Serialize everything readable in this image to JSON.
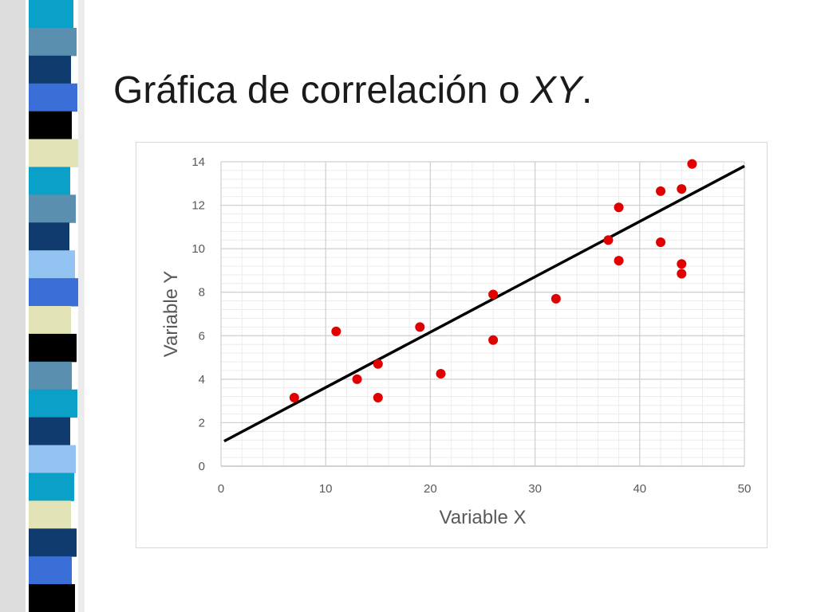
{
  "slide": {
    "title_main": "Gráfica de correlación o ",
    "title_italic": "XY",
    "title_end": ".",
    "strip_colors": [
      "#0aa0c8",
      "#5a8fb0",
      "#0f3b6e",
      "#3a6fd8",
      "#000000",
      "#e3e3b8",
      "#0aa0c8",
      "#5a8fb0",
      "#0f3b6e",
      "#93c3f0",
      "#3a6fd8",
      "#e3e3b8",
      "#000000",
      "#5a8fb0",
      "#0aa0c8",
      "#0f3b6e",
      "#93c3f0",
      "#0aa0c8",
      "#e3e3b8",
      "#0f3b6e",
      "#3a6fd8",
      "#000000"
    ]
  },
  "chart_data": {
    "type": "scatter",
    "title": "",
    "xlabel": "Variable X",
    "ylabel": "Variable Y",
    "xlim": [
      0,
      50
    ],
    "ylim": [
      0,
      14
    ],
    "xticks": [
      "0",
      "10",
      "20",
      "30",
      "40",
      "50"
    ],
    "yticks": [
      "0",
      "2",
      "4",
      "6",
      "8",
      "10",
      "12",
      "14"
    ],
    "grid": true,
    "minor_grid": true,
    "legend": "none",
    "point_color": "#e00000",
    "trendline_color": "#000000",
    "points": [
      {
        "x": 7,
        "y": 3.15
      },
      {
        "x": 11,
        "y": 6.2
      },
      {
        "x": 13,
        "y": 4.0
      },
      {
        "x": 15,
        "y": 4.7
      },
      {
        "x": 15,
        "y": 3.15
      },
      {
        "x": 19,
        "y": 6.4
      },
      {
        "x": 21,
        "y": 4.25
      },
      {
        "x": 26,
        "y": 7.9
      },
      {
        "x": 26,
        "y": 5.8
      },
      {
        "x": 32,
        "y": 7.7
      },
      {
        "x": 37,
        "y": 10.4
      },
      {
        "x": 38,
        "y": 11.9
      },
      {
        "x": 38,
        "y": 9.45
      },
      {
        "x": 42,
        "y": 12.65
      },
      {
        "x": 42,
        "y": 10.3
      },
      {
        "x": 44,
        "y": 12.75
      },
      {
        "x": 44,
        "y": 9.3
      },
      {
        "x": 44,
        "y": 8.85
      },
      {
        "x": 45,
        "y": 13.9
      }
    ],
    "trendline": {
      "x": [
        0.3,
        50
      ],
      "y": [
        1.15,
        13.8
      ]
    }
  }
}
